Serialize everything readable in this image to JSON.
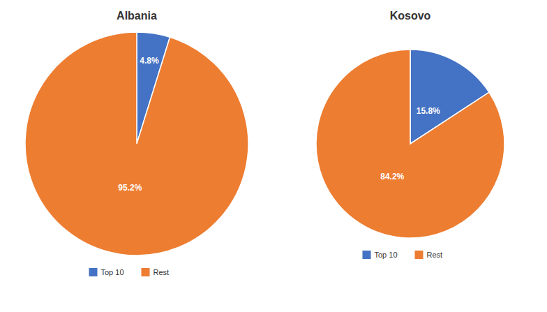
{
  "chart_data": [
    {
      "type": "pie",
      "title": "Albania",
      "categories": [
        "Top 10",
        "Rest"
      ],
      "values": [
        4.8,
        95.2
      ],
      "value_labels": [
        "4.8%",
        "95.2%"
      ],
      "colors": [
        "#4472C4",
        "#ED7D31"
      ],
      "data_labels": true,
      "legend": "bottom"
    },
    {
      "type": "pie",
      "title": "Kosovo",
      "categories": [
        "Top 10",
        "Rest"
      ],
      "values": [
        15.8,
        84.2
      ],
      "value_labels": [
        "15.8%",
        "84.2%"
      ],
      "colors": [
        "#4472C4",
        "#ED7D31"
      ],
      "data_labels": true,
      "legend": "bottom"
    }
  ]
}
